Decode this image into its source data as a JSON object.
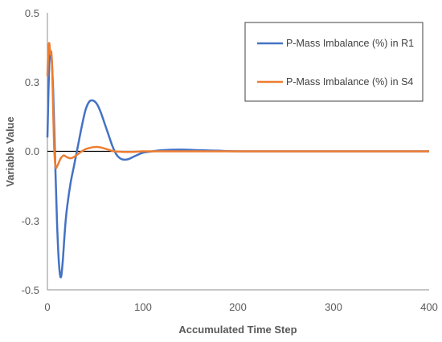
{
  "chart_data": {
    "type": "line",
    "xlabel": "Accumulated Time Step",
    "ylabel": "Variable Value",
    "xlim": [
      0,
      400
    ],
    "ylim": [
      -0.5,
      0.5
    ],
    "x_ticks": [
      "0",
      "100",
      "200",
      "300",
      "400"
    ],
    "y_ticks": [
      "0.5",
      "0.3",
      "0.0",
      "-0.3",
      "-0.5"
    ],
    "zero_line": true,
    "grid": false,
    "legend_position": "top-right",
    "series": [
      {
        "name": "P-Mass Imbalance (%) in R1",
        "color": "#4472C4",
        "x": [
          0,
          2,
          4,
          6,
          8,
          10,
          12,
          14,
          16,
          18,
          20,
          24,
          28,
          32,
          36,
          40,
          44,
          48,
          52,
          56,
          60,
          64,
          68,
          72,
          76,
          80,
          85,
          90,
          95,
          100,
          110,
          120,
          140,
          160,
          180,
          200,
          250,
          300,
          350,
          400
        ],
        "y": [
          0.05,
          0.32,
          0.35,
          0.22,
          -0.02,
          -0.25,
          -0.4,
          -0.455,
          -0.4,
          -0.3,
          -0.22,
          -0.12,
          -0.05,
          0.02,
          0.09,
          0.15,
          0.18,
          0.183,
          0.17,
          0.14,
          0.1,
          0.06,
          0.02,
          -0.01,
          -0.025,
          -0.03,
          -0.028,
          -0.02,
          -0.012,
          -0.005,
          0.0,
          0.004,
          0.006,
          0.004,
          0.002,
          0.0,
          0.0,
          0.0,
          0.0,
          0.0
        ]
      },
      {
        "name": "P-Mass Imbalance (%) in S4",
        "color": "#ED7D31",
        "x": [
          0,
          1,
          2,
          3,
          4,
          5,
          6,
          7,
          8,
          9,
          10,
          12,
          14,
          17,
          20,
          24,
          28,
          32,
          36,
          40,
          44,
          48,
          52,
          56,
          60,
          65,
          70,
          80,
          90,
          100,
          120,
          150,
          200,
          250,
          300,
          350,
          400
        ],
        "y": [
          0.27,
          0.37,
          0.39,
          0.35,
          0.36,
          0.3,
          0.15,
          0.02,
          -0.04,
          -0.06,
          -0.055,
          -0.04,
          -0.025,
          -0.015,
          -0.02,
          -0.025,
          -0.02,
          -0.01,
          0.0,
          0.008,
          0.012,
          0.015,
          0.016,
          0.014,
          0.01,
          0.005,
          0.0,
          -0.002,
          -0.002,
          0.0,
          0.0,
          0.0,
          0.0,
          0.0,
          0.0,
          0.0,
          0.0
        ]
      }
    ]
  }
}
